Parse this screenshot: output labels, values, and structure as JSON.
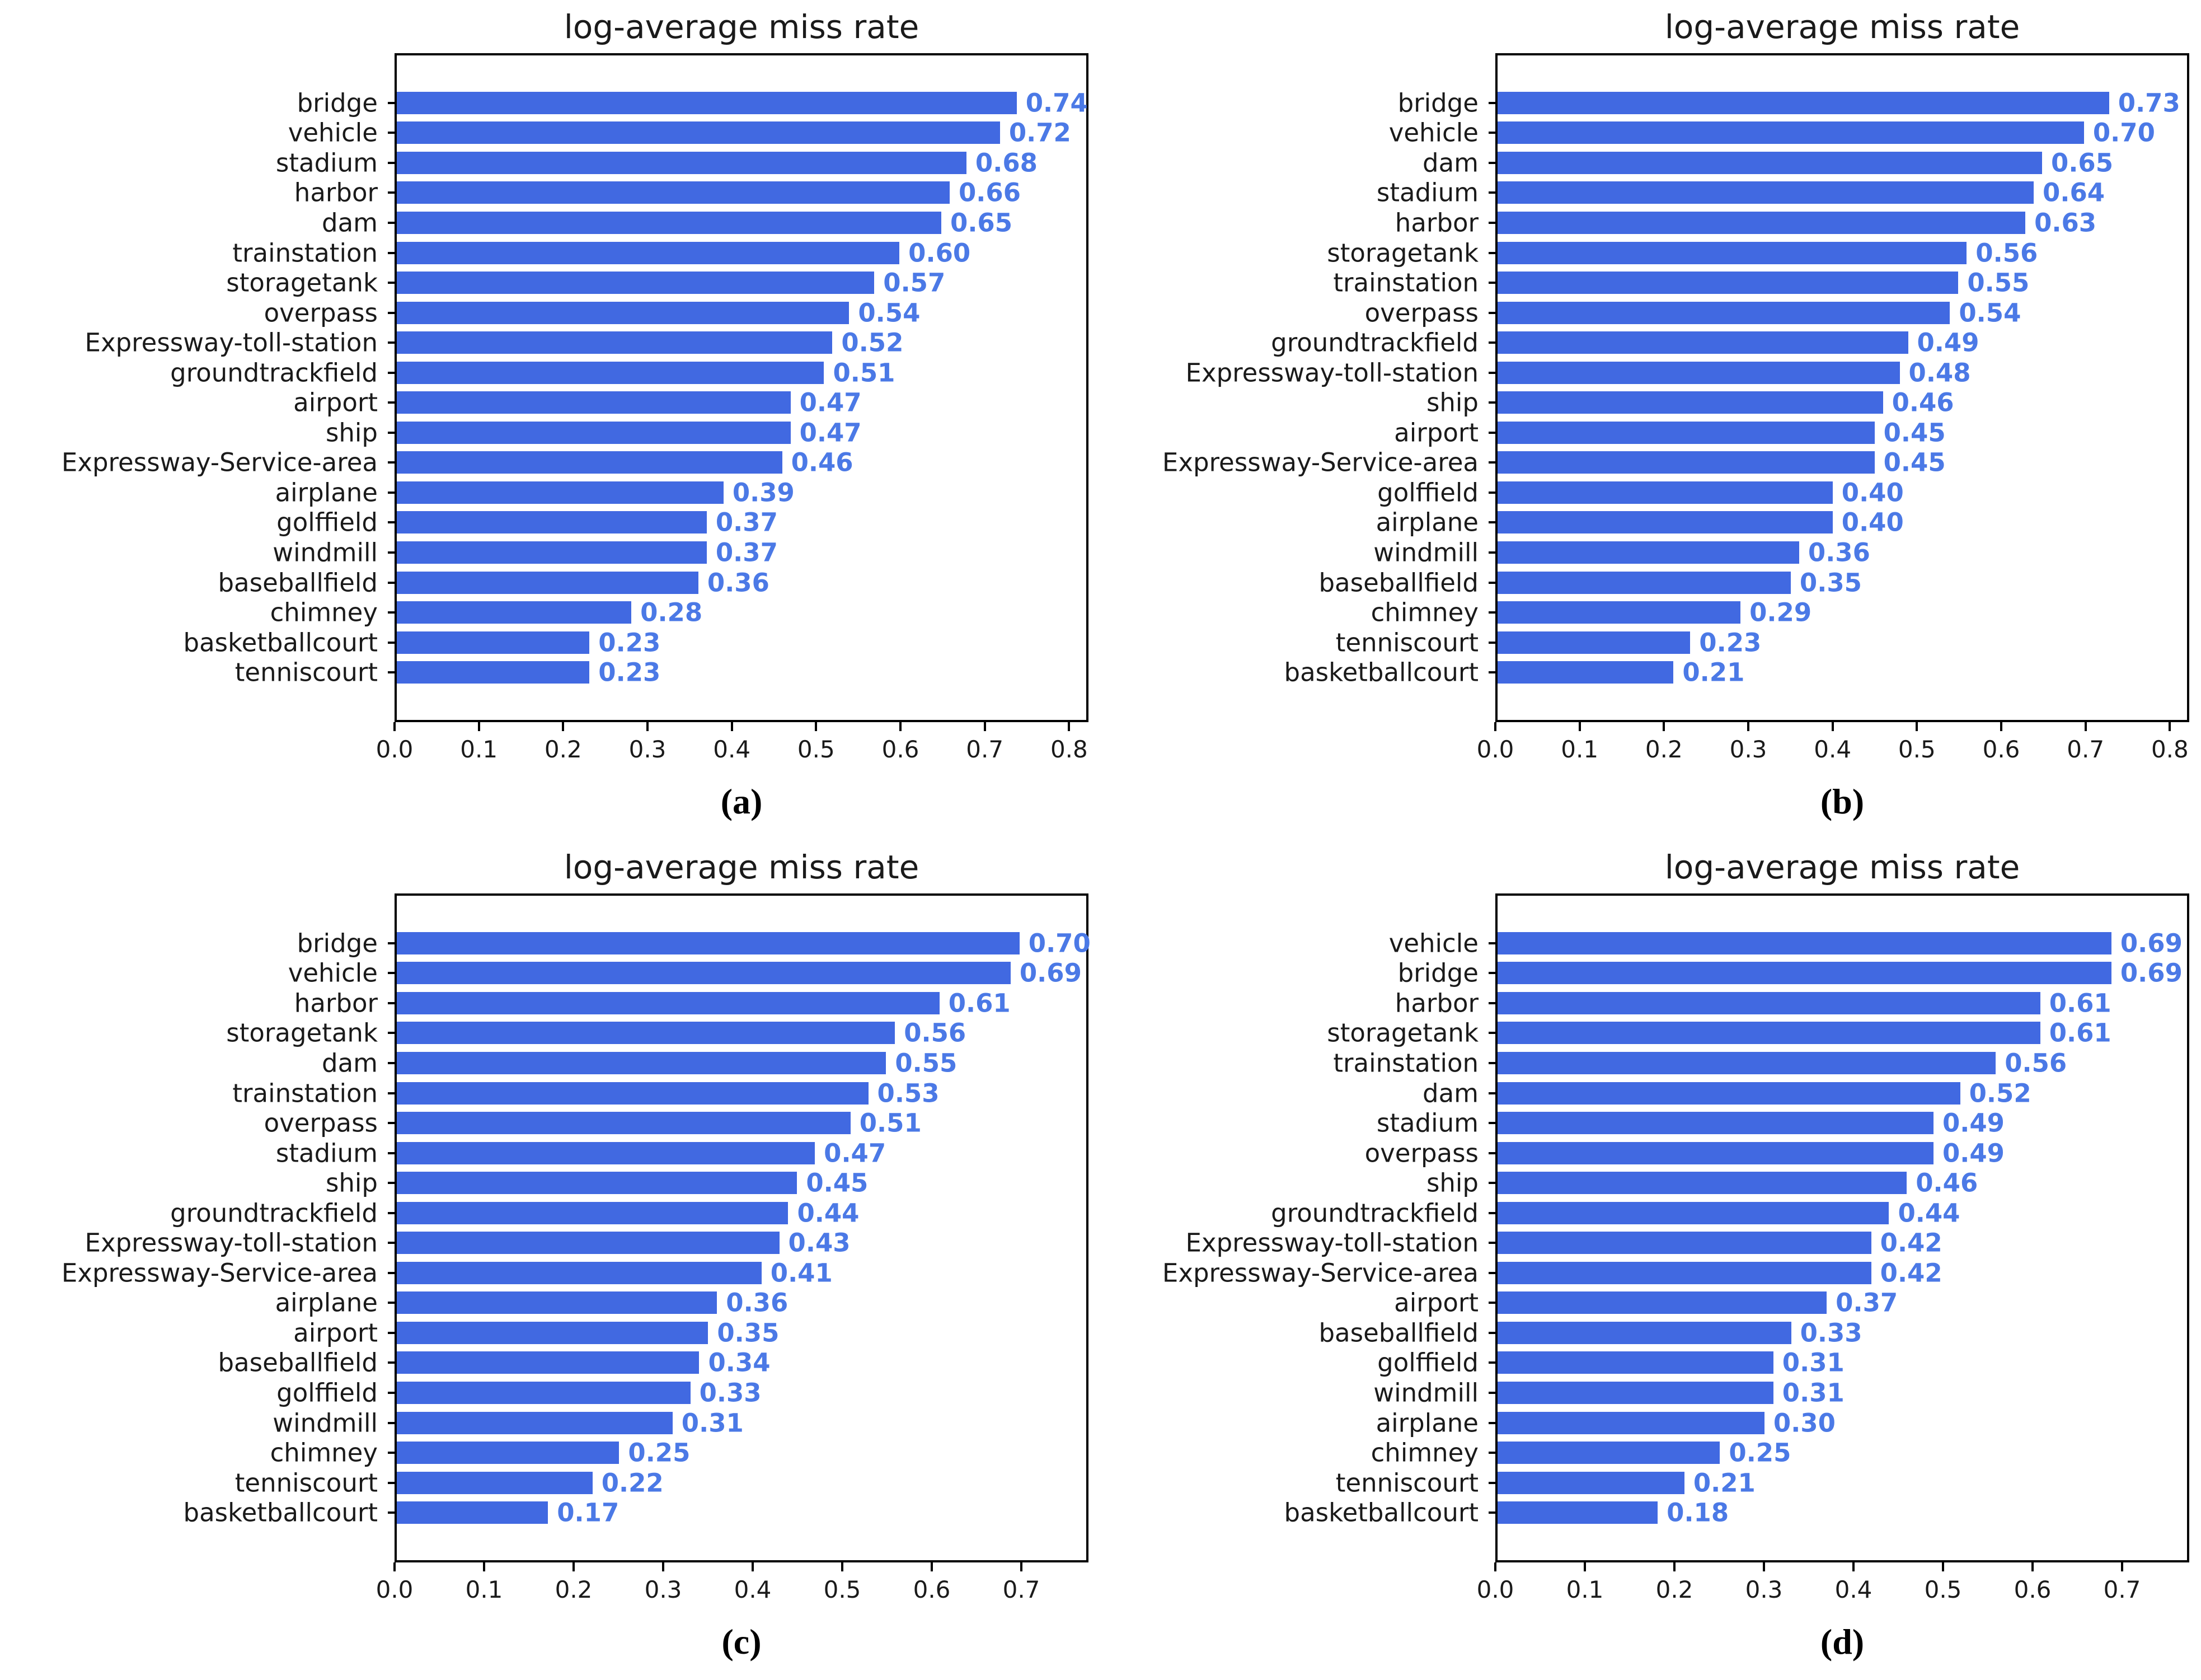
{
  "figure": {
    "captions": [
      "(a)",
      "(b)",
      "(c)",
      "(d)"
    ]
  },
  "styles": {
    "bar_color": "#4169E1",
    "value_label_color": "#4b79e6",
    "axis_color": "#000000",
    "text_color": "#1a1a1a"
  },
  "chart_data": [
    {
      "type": "bar",
      "orientation": "horizontal",
      "title": "log-average miss rate",
      "categories": [
        "bridge",
        "vehicle",
        "stadium",
        "harbor",
        "dam",
        "trainstation",
        "storagetank",
        "overpass",
        "Expressway-toll-station",
        "groundtrackfield",
        "airport",
        "ship",
        "Expressway-Service-area",
        "airplane",
        "golffield",
        "windmill",
        "baseballfield",
        "chimney",
        "basketballcourt",
        "tenniscourt"
      ],
      "values": [
        0.74,
        0.72,
        0.68,
        0.66,
        0.65,
        0.6,
        0.57,
        0.54,
        0.52,
        0.51,
        0.47,
        0.47,
        0.46,
        0.39,
        0.37,
        0.37,
        0.36,
        0.28,
        0.23,
        0.23
      ],
      "xlim": [
        0,
        0.823
      ],
      "xticks": [
        0.0,
        0.1,
        0.2,
        0.3,
        0.4,
        0.5,
        0.6,
        0.7,
        0.8
      ],
      "grid": false,
      "value_labels": true
    },
    {
      "type": "bar",
      "orientation": "horizontal",
      "title": "log-average miss rate",
      "categories": [
        "bridge",
        "vehicle",
        "dam",
        "stadium",
        "harbor",
        "storagetank",
        "trainstation",
        "overpass",
        "groundtrackfield",
        "Expressway-toll-station",
        "ship",
        "airport",
        "Expressway-Service-area",
        "golffield",
        "airplane",
        "windmill",
        "baseballfield",
        "chimney",
        "tenniscourt",
        "basketballcourt"
      ],
      "values": [
        0.73,
        0.7,
        0.65,
        0.64,
        0.63,
        0.56,
        0.55,
        0.54,
        0.49,
        0.48,
        0.46,
        0.45,
        0.45,
        0.4,
        0.4,
        0.36,
        0.35,
        0.29,
        0.23,
        0.21
      ],
      "xlim": [
        0,
        0.823
      ],
      "xticks": [
        0.0,
        0.1,
        0.2,
        0.3,
        0.4,
        0.5,
        0.6,
        0.7,
        0.8
      ],
      "grid": false,
      "value_labels": true
    },
    {
      "type": "bar",
      "orientation": "horizontal",
      "title": "log-average miss rate",
      "categories": [
        "bridge",
        "vehicle",
        "harbor",
        "storagetank",
        "dam",
        "trainstation",
        "overpass",
        "stadium",
        "ship",
        "groundtrackfield",
        "Expressway-toll-station",
        "Expressway-Service-area",
        "airplane",
        "airport",
        "baseballfield",
        "golffield",
        "windmill",
        "chimney",
        "tenniscourt",
        "basketballcourt"
      ],
      "values": [
        0.7,
        0.69,
        0.61,
        0.56,
        0.55,
        0.53,
        0.51,
        0.47,
        0.45,
        0.44,
        0.43,
        0.41,
        0.36,
        0.35,
        0.34,
        0.33,
        0.31,
        0.25,
        0.22,
        0.17
      ],
      "xlim": [
        0,
        0.775
      ],
      "xticks": [
        0.0,
        0.1,
        0.2,
        0.3,
        0.4,
        0.5,
        0.6,
        0.7
      ],
      "grid": false,
      "value_labels": true
    },
    {
      "type": "bar",
      "orientation": "horizontal",
      "title": "log-average miss rate",
      "categories": [
        "vehicle",
        "bridge",
        "harbor",
        "storagetank",
        "trainstation",
        "dam",
        "stadium",
        "overpass",
        "ship",
        "groundtrackfield",
        "Expressway-toll-station",
        "Expressway-Service-area",
        "airport",
        "baseballfield",
        "golffield",
        "windmill",
        "airplane",
        "chimney",
        "tenniscourt",
        "basketballcourt"
      ],
      "values": [
        0.69,
        0.69,
        0.61,
        0.61,
        0.56,
        0.52,
        0.49,
        0.49,
        0.46,
        0.44,
        0.42,
        0.42,
        0.37,
        0.33,
        0.31,
        0.31,
        0.3,
        0.25,
        0.21,
        0.18
      ],
      "xlim": [
        0,
        0.775
      ],
      "xticks": [
        0.0,
        0.1,
        0.2,
        0.3,
        0.4,
        0.5,
        0.6,
        0.7
      ],
      "grid": false,
      "value_labels": true
    }
  ]
}
